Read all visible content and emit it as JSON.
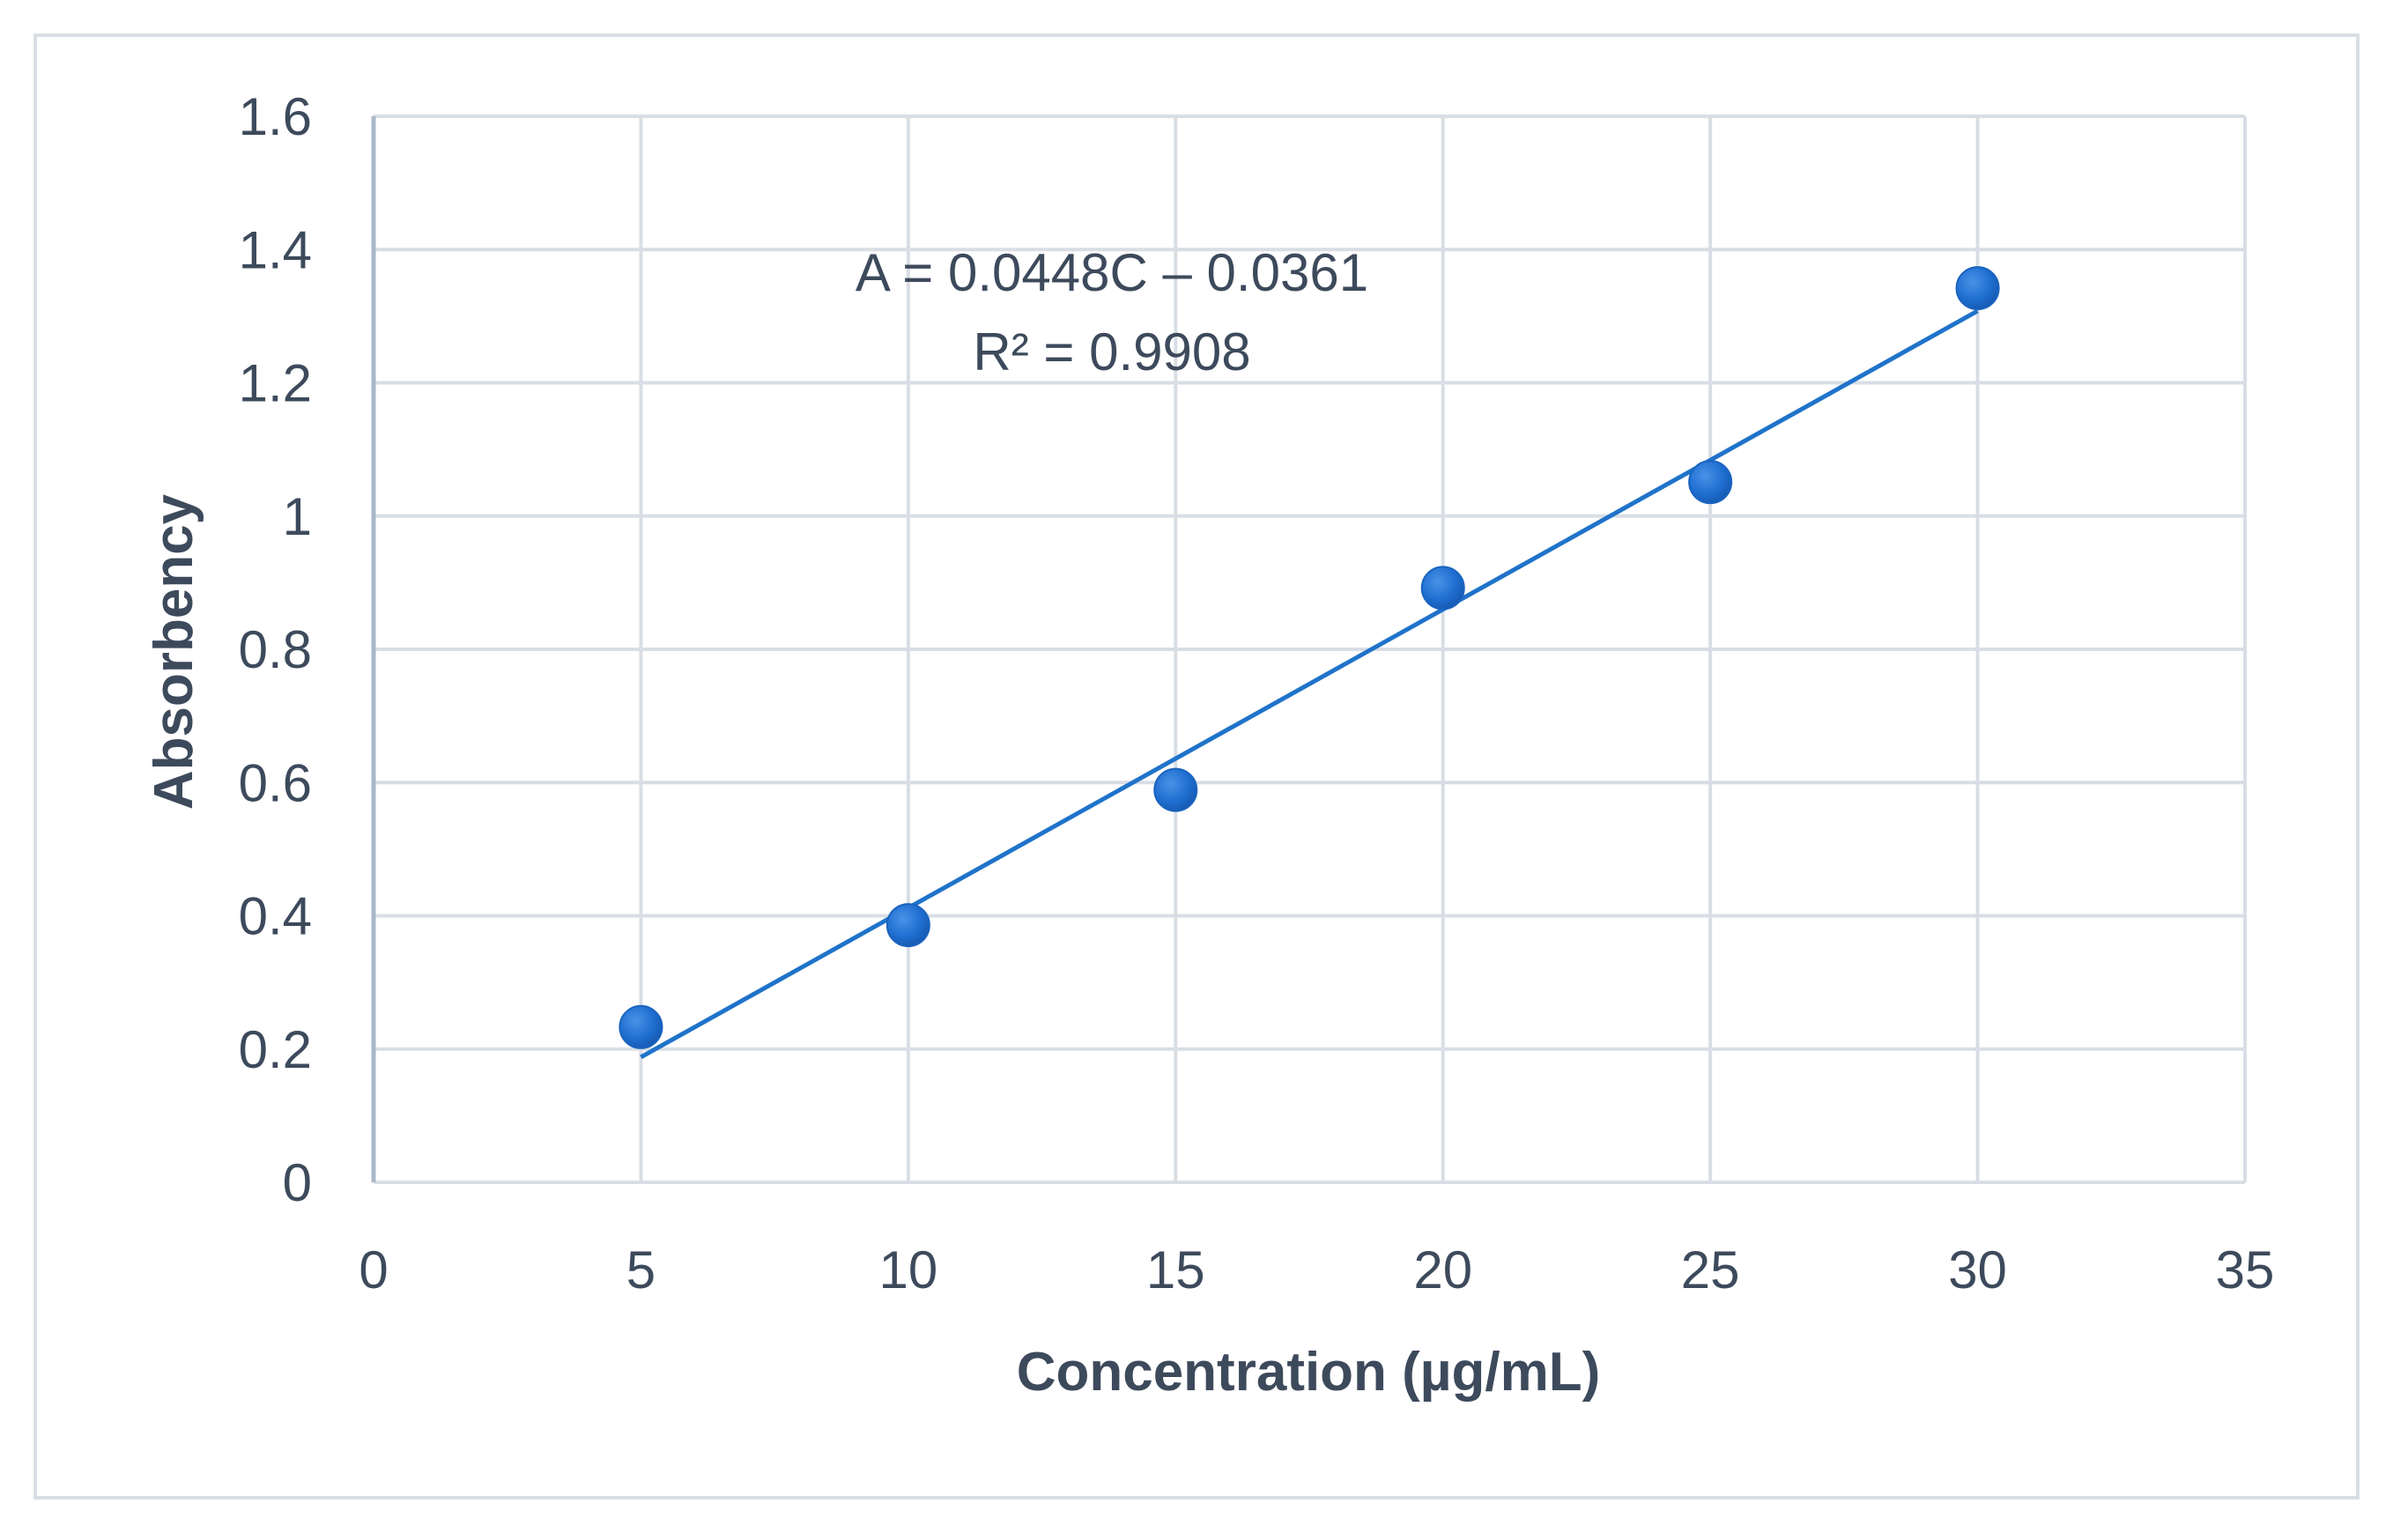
{
  "chart_data": {
    "type": "scatter",
    "title": "",
    "xlabel": "Concentration (µg/mL)",
    "ylabel": "Absorbency",
    "xlim": [
      0,
      35
    ],
    "ylim": [
      0,
      1.6
    ],
    "xticks": [
      "0",
      "5",
      "10",
      "15",
      "20",
      "25",
      "30",
      "35"
    ],
    "yticks": [
      "0",
      "0.2",
      "0.4",
      "0.6",
      "0.8",
      "1",
      "1.2",
      "1.4",
      "1.6"
    ],
    "grid": true,
    "legend": "none",
    "series": [
      {
        "name": "Absorbency",
        "x": [
          5,
          10,
          15,
          20,
          25,
          30
        ],
        "y": [
          0.233,
          0.386,
          0.589,
          0.892,
          1.051,
          1.342
        ]
      }
    ],
    "trendline": {
      "type": "linear",
      "slope": 0.0448,
      "intercept": -0.0361,
      "x_range": [
        5,
        30
      ],
      "equation": "A = 0.0448C – 0.0361",
      "r_squared": "R² = 0.9908"
    },
    "colors": {
      "marker": "#1f6fd1",
      "trendline": "#1f73c9",
      "grid": "#d9dee5",
      "text": "#3d4a5c",
      "y_axis_line": "#a9b8c9"
    }
  }
}
